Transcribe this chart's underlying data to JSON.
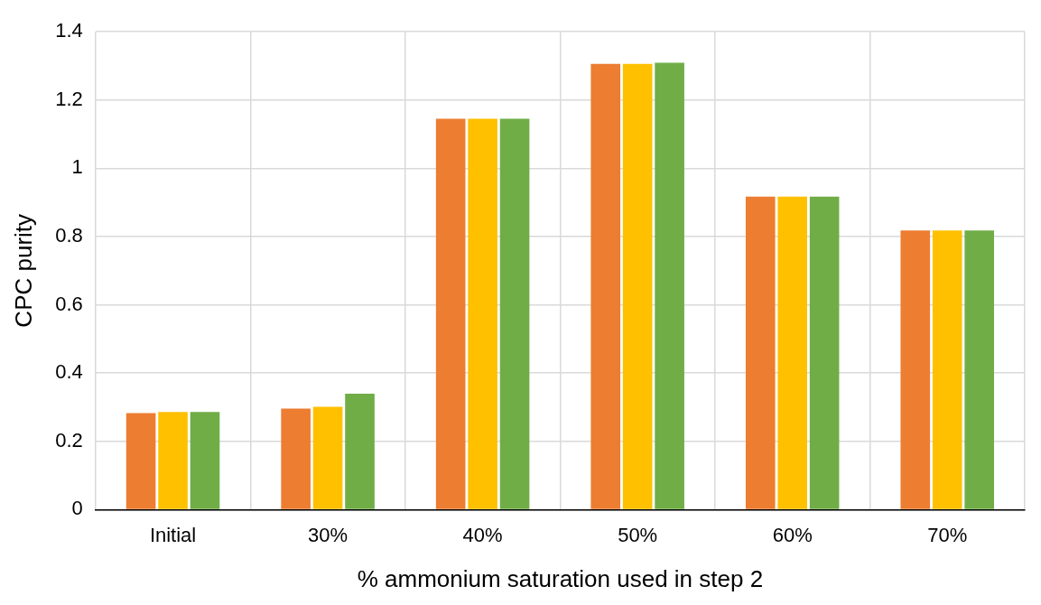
{
  "chart_data": {
    "type": "bar",
    "xlabel": "% ammonium saturation used in step 2",
    "ylabel": "CPC purity",
    "categories": [
      "Initial",
      "30%",
      "40%",
      "50%",
      "60%",
      "70%"
    ],
    "series": [
      {
        "color": "#ed7d31",
        "values": [
          0.283,
          0.296,
          1.145,
          1.306,
          0.917,
          0.818
        ]
      },
      {
        "color": "#ffc000",
        "values": [
          0.286,
          0.301,
          1.145,
          1.306,
          0.917,
          0.818
        ]
      },
      {
        "color": "#70ad47",
        "values": [
          0.286,
          0.34,
          1.145,
          1.309,
          0.917,
          0.818
        ]
      }
    ],
    "ylim": [
      0,
      1.4
    ],
    "yticks": [
      0,
      0.2,
      0.4,
      0.6,
      0.8,
      1,
      1.2,
      1.4
    ],
    "grid": true,
    "legend": false
  }
}
